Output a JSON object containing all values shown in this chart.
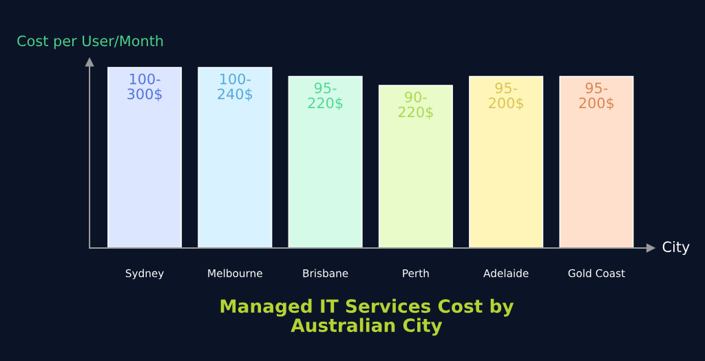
{
  "chart_data": {
    "type": "bar",
    "title": "Managed IT Services Cost by\nAustralian City",
    "xlabel": "City",
    "ylabel": "Cost per User/Month",
    "categories": [
      "Sydney",
      "Melbourne",
      "Brisbane",
      "Perth",
      "Adelaide",
      "Gold Coast"
    ],
    "values": [
      100,
      100,
      95,
      90,
      95,
      95
    ],
    "colors": [
      "#dde6ff",
      "#d9f2ff",
      "#d5fbe8",
      "#e9fbc8",
      "#fff5b8",
      "#ffe0cc"
    ],
    "value_labels": [
      "100-\n300$",
      "100-\n240$",
      "95-\n220$",
      "90-\n220$",
      "95-\n200$",
      "95-\n200$"
    ],
    "grid": false
  }
}
